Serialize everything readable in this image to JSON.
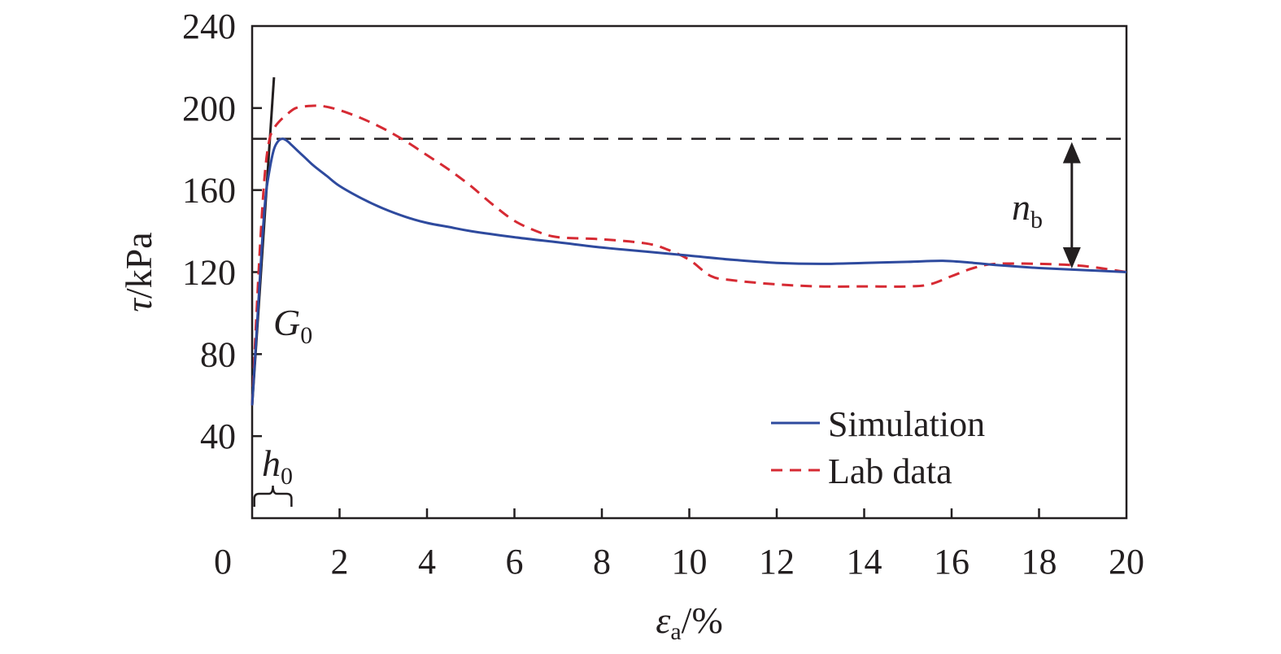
{
  "chart_data": {
    "type": "line",
    "xlim": [
      0,
      20
    ],
    "ylim": [
      0,
      240
    ],
    "x_ticks": [
      0,
      2,
      4,
      6,
      8,
      10,
      12,
      14,
      16,
      18,
      20
    ],
    "y_ticks": [
      40,
      80,
      120,
      160,
      200,
      240
    ],
    "grid": false,
    "legend_position": "bottom-right",
    "xlabel": {
      "symbol": "ε",
      "subscript": "a",
      "unit": "/%"
    },
    "ylabel": {
      "symbol": "τ",
      "unit": "/kPa"
    },
    "series": [
      {
        "name": "Simulation",
        "color": "#2e4a9e",
        "style": "solid",
        "x": [
          0,
          0.1,
          0.2,
          0.3,
          0.4,
          0.5,
          0.6,
          0.7,
          0.8,
          0.9,
          1.0,
          1.2,
          1.4,
          1.7,
          2.0,
          2.5,
          3.0,
          3.5,
          4.0,
          4.5,
          5.0,
          6.0,
          7.0,
          8.0,
          9.0,
          10.0,
          11.0,
          12.0,
          13.0,
          14.0,
          15.0,
          15.8,
          16.5,
          17.0,
          18.0,
          19.0,
          20.0
        ],
        "y": [
          55,
          90,
          125,
          155,
          170,
          180,
          184,
          185,
          184,
          182,
          180,
          176,
          172,
          167,
          162,
          156,
          151,
          147,
          144,
          142,
          140,
          137,
          134.5,
          132,
          130,
          128,
          126,
          124.5,
          124,
          124.5,
          125,
          125.5,
          124.5,
          123.5,
          122,
          121,
          120
        ]
      },
      {
        "name": "Lab data",
        "color": "#d62a33",
        "style": "dashed",
        "x": [
          0,
          0.1,
          0.2,
          0.3,
          0.4,
          0.5,
          0.6,
          0.8,
          1.0,
          1.3,
          1.6,
          2.0,
          2.5,
          3.0,
          3.5,
          4.0,
          4.5,
          5.0,
          5.5,
          6.0,
          6.5,
          7.0,
          8.0,
          9.0,
          9.5,
          10.0,
          10.5,
          11.0,
          12.0,
          13.0,
          14.0,
          15.0,
          15.5,
          16.0,
          16.5,
          17.0,
          18.0,
          19.0,
          20.0
        ],
        "y": [
          55,
          100,
          140,
          170,
          185,
          190,
          193,
          197,
          200,
          201,
          201,
          199,
          195,
          190,
          184,
          177,
          170,
          162,
          153,
          145,
          140,
          137,
          136,
          134,
          131,
          126,
          118,
          116,
          114,
          113,
          113,
          113,
          114,
          118,
          122,
          124,
          124,
          123,
          120
        ]
      }
    ],
    "annotations": {
      "g0_label": {
        "letter": "G",
        "subscript": "0"
      },
      "h0_label": {
        "letter": "h",
        "subscript": "0"
      },
      "nb_label": {
        "letter": "n",
        "subscript": "b"
      },
      "tangent_line": {
        "x": [
          0.0,
          0.5
        ],
        "y": [
          55,
          215
        ]
      },
      "peak_reference_y": 185,
      "residual_y": 121,
      "nb_arrow_x": 18.75,
      "h0_bracket_x": [
        0.05,
        0.9
      ]
    }
  }
}
